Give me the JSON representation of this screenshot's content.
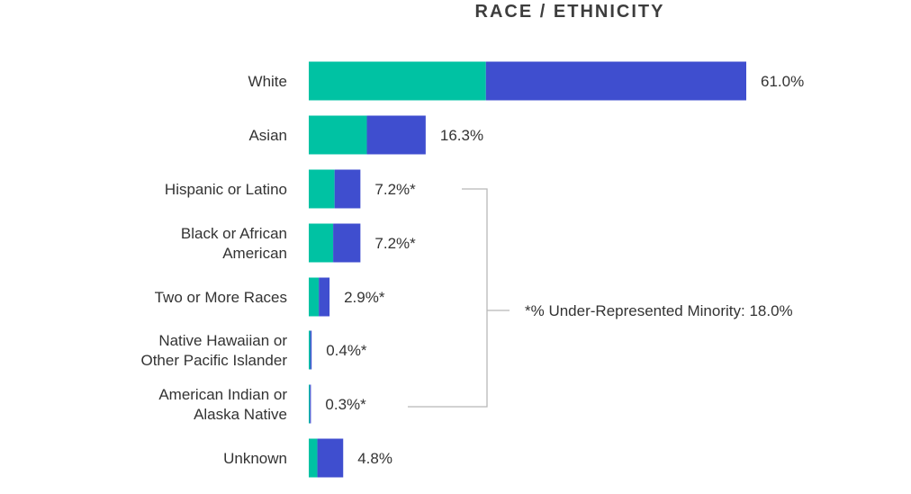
{
  "chart_data": {
    "type": "bar",
    "orientation": "horizontal",
    "stacked": true,
    "title": "RACE / ETHNICITY",
    "categories": [
      "White",
      "Asian",
      "Hispanic or Latino",
      "Black or African American",
      "Two or More Races",
      "Native Hawaiian or Other Pacific Islander",
      "American Indian or Alaska Native",
      "Unknown"
    ],
    "category_lines": [
      [
        "White"
      ],
      [
        "Asian"
      ],
      [
        "Hispanic or Latino"
      ],
      [
        "Black or African",
        "American"
      ],
      [
        "Two or More Races"
      ],
      [
        "Native Hawaiian or",
        "Other Pacific Islander"
      ],
      [
        "American Indian or",
        "Alaska Native"
      ],
      [
        "Unknown"
      ]
    ],
    "totals": [
      61.0,
      16.3,
      7.2,
      7.2,
      2.9,
      0.4,
      0.3,
      4.8
    ],
    "value_labels": [
      "61.0%",
      "16.3%",
      "7.2%*",
      "7.2%*",
      "2.9%*",
      "0.4%*",
      "0.3%*",
      "4.8%"
    ],
    "series": [
      {
        "values": [
          24.7,
          8.1,
          3.6,
          3.4,
          1.4,
          0.2,
          0.15,
          1.2
        ],
        "color": "#00c2a3"
      },
      {
        "values": [
          36.3,
          8.2,
          3.6,
          3.8,
          1.5,
          0.2,
          0.15,
          3.6
        ],
        "color": "#3f4ecf"
      }
    ],
    "xlim": [
      0,
      61.0
    ],
    "grid": false,
    "legend": "none",
    "annotation": {
      "text": "*% Under-Represented Minority: 18.0%",
      "bracket_from_category": 2,
      "bracket_to_category": 6
    }
  }
}
